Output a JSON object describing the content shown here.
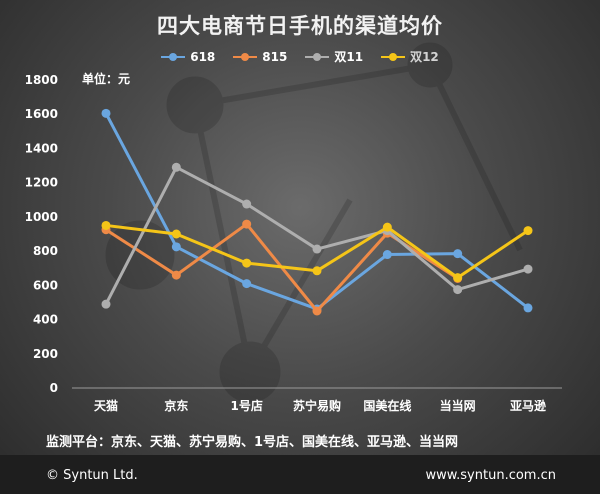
{
  "header": {
    "title": "四大电商节日手机的渠道均价",
    "unit": "单位：元"
  },
  "footer": {
    "note": "监测平台：京东、天猫、苏宁易购、1号店、国美在线、亚马逊、当当网",
    "copyright": "© Syntun Ltd.",
    "website": "www.syntun.com.cn"
  },
  "chart_data": {
    "type": "line",
    "title": "四大电商节日手机的渠道均价",
    "xlabel": "",
    "ylabel": "",
    "unit": "单位：元",
    "categories": [
      "天猫",
      "京东",
      "1号店",
      "苏宁易购",
      "国美在线",
      "当当网",
      "亚马逊"
    ],
    "y_ticks": [
      0,
      200,
      400,
      600,
      800,
      1000,
      1200,
      1400,
      1600,
      1800
    ],
    "ylim": [
      0,
      1800
    ],
    "grid": false,
    "legend_position": "top",
    "series": [
      {
        "name": "618",
        "color": "#6aa6e0",
        "values": [
          1605,
          825,
          610,
          462,
          780,
          785,
          468
        ]
      },
      {
        "name": "815",
        "color": "#ef8a47",
        "values": [
          925,
          660,
          958,
          450,
          905,
          640,
          null
        ]
      },
      {
        "name": "双11",
        "color": "#aeaeae",
        "values": [
          490,
          1290,
          1075,
          812,
          920,
          575,
          695
        ]
      },
      {
        "name": "双12",
        "color": "#f5c518",
        "values": [
          950,
          900,
          730,
          685,
          940,
          645,
          920
        ]
      }
    ]
  }
}
